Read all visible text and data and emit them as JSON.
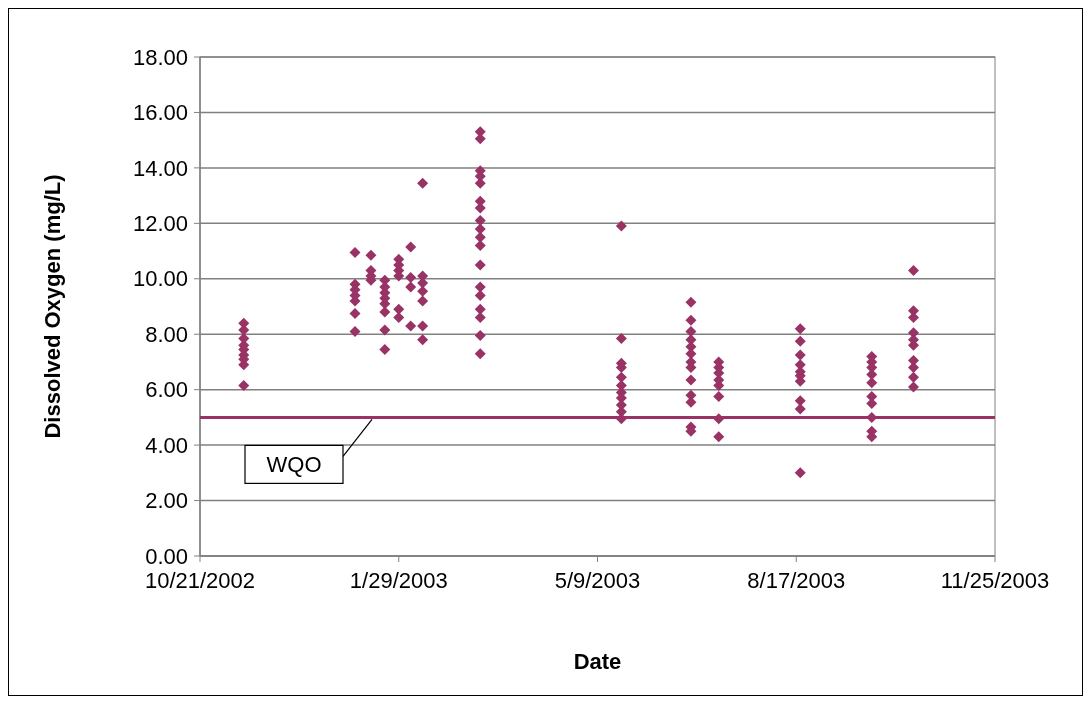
{
  "chart_data": {
    "type": "scatter",
    "xlabel": "Date",
    "ylabel": "Dissolved Oxygen (mg/L)",
    "marker": "diamond",
    "grid": "y",
    "xlim": [
      "2002-10-21",
      "2003-11-25"
    ],
    "xticks": [
      {
        "value": "2002-10-21",
        "label": "10/21/2002"
      },
      {
        "value": "2003-01-29",
        "label": "1/29/2003"
      },
      {
        "value": "2003-05-09",
        "label": "5/9/2003"
      },
      {
        "value": "2003-08-17",
        "label": "8/17/2003"
      },
      {
        "value": "2003-11-25",
        "label": "11/25/2003"
      }
    ],
    "ylim": [
      0,
      18
    ],
    "yticks": [
      {
        "value": 0,
        "label": "0.00"
      },
      {
        "value": 2,
        "label": "2.00"
      },
      {
        "value": 4,
        "label": "4.00"
      },
      {
        "value": 6,
        "label": "6.00"
      },
      {
        "value": 8,
        "label": "8.00"
      },
      {
        "value": 10,
        "label": "10.00"
      },
      {
        "value": 12,
        "label": "12.00"
      },
      {
        "value": 14,
        "label": "14.00"
      },
      {
        "value": 16,
        "label": "16.00"
      },
      {
        "value": 18,
        "label": "18.00"
      }
    ],
    "ref_lines": [
      {
        "axis": "y",
        "value": 5,
        "label": "WQO",
        "color": "#993366"
      }
    ],
    "series": [
      {
        "color": "#993366",
        "x": [
          "2002-11-12",
          "2002-11-12",
          "2002-11-12",
          "2002-11-12",
          "2002-11-12",
          "2002-11-12",
          "2002-11-12",
          "2002-11-12",
          "2002-11-12",
          "2003-01-07",
          "2003-01-07",
          "2003-01-07",
          "2003-01-07",
          "2003-01-07",
          "2003-01-07",
          "2003-01-07",
          "2003-01-15",
          "2003-01-15",
          "2003-01-15",
          "2003-01-15",
          "2003-01-22",
          "2003-01-22",
          "2003-01-22",
          "2003-01-22",
          "2003-01-22",
          "2003-01-22",
          "2003-01-22",
          "2003-01-22",
          "2003-01-29",
          "2003-01-29",
          "2003-01-29",
          "2003-01-29",
          "2003-01-29",
          "2003-01-29",
          "2003-02-04",
          "2003-02-04",
          "2003-02-04",
          "2003-02-04",
          "2003-02-10",
          "2003-02-10",
          "2003-02-10",
          "2003-02-10",
          "2003-02-10",
          "2003-02-10",
          "2003-02-10",
          "2003-03-11",
          "2003-03-11",
          "2003-03-11",
          "2003-03-11",
          "2003-03-11",
          "2003-03-11",
          "2003-03-11",
          "2003-03-11",
          "2003-03-11",
          "2003-03-11",
          "2003-03-11",
          "2003-03-11",
          "2003-03-11",
          "2003-03-11",
          "2003-03-11",
          "2003-03-11",
          "2003-03-11",
          "2003-03-11",
          "2003-05-21",
          "2003-05-21",
          "2003-05-21",
          "2003-05-21",
          "2003-05-21",
          "2003-05-21",
          "2003-05-21",
          "2003-05-21",
          "2003-05-21",
          "2003-05-21",
          "2003-05-21",
          "2003-06-25",
          "2003-06-25",
          "2003-06-25",
          "2003-06-25",
          "2003-06-25",
          "2003-06-25",
          "2003-06-25",
          "2003-06-25",
          "2003-06-25",
          "2003-06-25",
          "2003-06-25",
          "2003-06-25",
          "2003-06-25",
          "2003-07-09",
          "2003-07-09",
          "2003-07-09",
          "2003-07-09",
          "2003-07-09",
          "2003-07-09",
          "2003-07-09",
          "2003-07-09",
          "2003-08-19",
          "2003-08-19",
          "2003-08-19",
          "2003-08-19",
          "2003-08-19",
          "2003-08-19",
          "2003-08-19",
          "2003-08-19",
          "2003-08-19",
          "2003-08-19",
          "2003-09-24",
          "2003-09-24",
          "2003-09-24",
          "2003-09-24",
          "2003-09-24",
          "2003-09-24",
          "2003-09-24",
          "2003-09-24",
          "2003-09-24",
          "2003-09-24",
          "2003-10-15",
          "2003-10-15",
          "2003-10-15",
          "2003-10-15",
          "2003-10-15",
          "2003-10-15",
          "2003-10-15",
          "2003-10-15",
          "2003-10-15",
          "2003-10-15"
        ],
        "values": [
          8.4,
          8.15,
          7.85,
          7.6,
          7.45,
          7.25,
          7.1,
          6.9,
          6.15,
          10.95,
          9.8,
          9.6,
          9.4,
          9.2,
          8.75,
          8.1,
          10.85,
          10.3,
          10.1,
          9.95,
          9.95,
          9.7,
          9.5,
          9.3,
          9.1,
          8.8,
          8.15,
          7.45,
          10.7,
          10.5,
          10.3,
          10.1,
          8.9,
          8.6,
          11.15,
          10.05,
          9.7,
          8.3,
          13.45,
          10.1,
          9.85,
          9.55,
          9.2,
          8.3,
          7.8,
          15.3,
          15.05,
          13.9,
          13.7,
          13.45,
          12.8,
          12.55,
          12.1,
          11.8,
          11.5,
          11.2,
          10.5,
          9.7,
          9.4,
          8.9,
          8.6,
          7.95,
          7.3,
          11.9,
          7.85,
          6.95,
          6.8,
          6.45,
          6.15,
          5.9,
          5.7,
          5.45,
          5.2,
          4.95,
          9.15,
          8.5,
          8.1,
          7.8,
          7.55,
          7.3,
          7.0,
          6.8,
          6.35,
          5.8,
          5.55,
          4.65,
          4.5,
          7.0,
          6.8,
          6.6,
          6.35,
          6.15,
          5.75,
          4.95,
          4.3,
          8.2,
          7.75,
          7.25,
          6.9,
          6.65,
          6.5,
          6.3,
          5.6,
          5.3,
          3.0,
          7.2,
          7.0,
          6.8,
          6.55,
          6.25,
          5.75,
          5.5,
          5.0,
          4.5,
          4.3,
          10.3,
          8.85,
          8.6,
          8.05,
          7.8,
          7.6,
          7.05,
          6.8,
          6.45,
          6.1
        ]
      }
    ]
  }
}
